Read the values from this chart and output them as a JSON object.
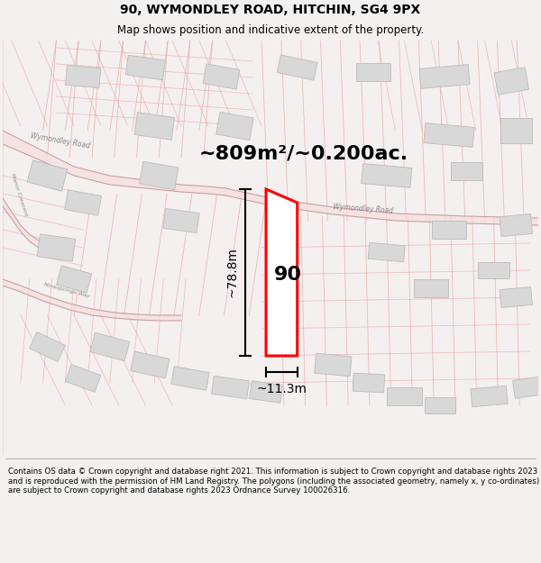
{
  "title": "90, WYMONDLEY ROAD, HITCHIN, SG4 9PX",
  "subtitle": "Map shows position and indicative extent of the property.",
  "footer": "Contains OS data © Crown copyright and database right 2021. This information is subject to Crown copyright and database rights 2023 and is reproduced with the permission of HM Land Registry. The polygons (including the associated geometry, namely x, y co-ordinates) are subject to Crown copyright and database rights 2023 Ordnance Survey 100026316.",
  "area_label": "~809m²/~0.200ac.",
  "width_label": "~11.3m",
  "height_label": "~78.8m",
  "number_label": "90",
  "map_bg": "#ffffff",
  "parcel_line_color": "#e8a0a0",
  "road_fill_color": "#f5dddd",
  "building_fill": "#d8d8d8",
  "building_edge": "#bbbbbb",
  "highlight_color": "#ff0000",
  "text_road_color": "#999999",
  "title_fontsize": 10,
  "subtitle_fontsize": 8.5,
  "footer_fontsize": 6.2,
  "area_fontsize": 16,
  "dim_fontsize": 10,
  "label_fontsize": 16
}
